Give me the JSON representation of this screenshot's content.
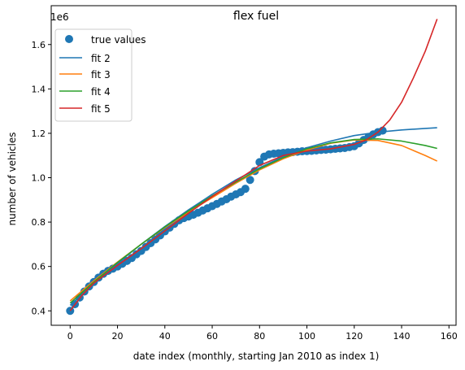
{
  "chart_data": {
    "type": "scatter",
    "title": "flex fuel",
    "xlabel": "date index (monthly, starting Jan 2010 as index 1)",
    "ylabel": "number of vehicles",
    "y_offset_text": "1e6",
    "xlim": [
      -8,
      163
    ],
    "ylim": [
      0.335,
      1.775
    ],
    "x_ticks": [
      0,
      20,
      40,
      60,
      80,
      100,
      120,
      140,
      160
    ],
    "y_ticks": [
      0.4,
      0.6,
      0.8,
      1.0,
      1.2,
      1.4,
      1.6
    ],
    "y_tick_labels": [
      "0.4",
      "0.6",
      "0.8",
      "1.0",
      "1.2",
      "1.4",
      "1.6"
    ],
    "grid": false,
    "legend_position": "upper-left",
    "legend": [
      "true values",
      "fit 2",
      "fit 3",
      "fit 4",
      "fit 5"
    ],
    "scatter": {
      "name": "true values",
      "color": "#1f77b4",
      "points": [
        [
          0,
          0.4
        ],
        [
          2,
          0.43
        ],
        [
          4,
          0.46
        ],
        [
          6,
          0.487
        ],
        [
          8,
          0.51
        ],
        [
          10,
          0.53
        ],
        [
          12,
          0.55
        ],
        [
          14,
          0.567
        ],
        [
          16,
          0.58
        ],
        [
          18,
          0.59
        ],
        [
          20,
          0.6
        ],
        [
          22,
          0.612
        ],
        [
          24,
          0.625
        ],
        [
          26,
          0.638
        ],
        [
          28,
          0.655
        ],
        [
          30,
          0.67
        ],
        [
          32,
          0.688
        ],
        [
          34,
          0.705
        ],
        [
          36,
          0.722
        ],
        [
          38,
          0.74
        ],
        [
          40,
          0.758
        ],
        [
          42,
          0.775
        ],
        [
          44,
          0.792
        ],
        [
          46,
          0.808
        ],
        [
          48,
          0.818
        ],
        [
          50,
          0.825
        ],
        [
          52,
          0.833
        ],
        [
          54,
          0.842
        ],
        [
          56,
          0.852
        ],
        [
          58,
          0.862
        ],
        [
          60,
          0.872
        ],
        [
          62,
          0.882
        ],
        [
          64,
          0.893
        ],
        [
          66,
          0.903
        ],
        [
          68,
          0.915
        ],
        [
          70,
          0.925
        ],
        [
          72,
          0.935
        ],
        [
          74,
          0.95
        ],
        [
          76,
          0.99
        ],
        [
          78,
          1.03
        ],
        [
          80,
          1.07
        ],
        [
          82,
          1.095
        ],
        [
          84,
          1.105
        ],
        [
          86,
          1.108
        ],
        [
          88,
          1.11
        ],
        [
          90,
          1.112
        ],
        [
          92,
          1.114
        ],
        [
          94,
          1.115
        ],
        [
          96,
          1.117
        ],
        [
          98,
          1.119
        ],
        [
          100,
          1.12
        ],
        [
          102,
          1.121
        ],
        [
          104,
          1.123
        ],
        [
          106,
          1.125
        ],
        [
          108,
          1.126
        ],
        [
          110,
          1.128
        ],
        [
          112,
          1.13
        ],
        [
          114,
          1.132
        ],
        [
          116,
          1.134
        ],
        [
          118,
          1.138
        ],
        [
          120,
          1.142
        ],
        [
          122,
          1.155
        ],
        [
          124,
          1.17
        ],
        [
          126,
          1.183
        ],
        [
          128,
          1.195
        ],
        [
          130,
          1.205
        ],
        [
          132,
          1.212
        ]
      ]
    },
    "series": [
      {
        "name": "fit 2",
        "color": "#1f77b4",
        "x": [
          0,
          10,
          20,
          30,
          40,
          50,
          60,
          70,
          80,
          90,
          100,
          110,
          120,
          130,
          140,
          150,
          155
        ],
        "values": [
          0.425,
          0.525,
          0.615,
          0.7,
          0.78,
          0.855,
          0.925,
          0.99,
          1.045,
          1.095,
          1.135,
          1.165,
          1.19,
          1.205,
          1.215,
          1.222,
          1.225
        ]
      },
      {
        "name": "fit 3",
        "color": "#ff7f0e",
        "x": [
          0,
          10,
          20,
          30,
          40,
          50,
          60,
          70,
          80,
          90,
          100,
          110,
          120,
          130,
          140,
          150,
          155
        ],
        "values": [
          0.445,
          0.535,
          0.62,
          0.7,
          0.775,
          0.845,
          0.91,
          0.975,
          1.035,
          1.085,
          1.125,
          1.155,
          1.17,
          1.168,
          1.145,
          1.1,
          1.075
        ]
      },
      {
        "name": "fit 4",
        "color": "#2ca02c",
        "x": [
          0,
          10,
          20,
          30,
          40,
          50,
          60,
          70,
          80,
          90,
          100,
          110,
          120,
          130,
          140,
          150,
          155
        ],
        "values": [
          0.435,
          0.53,
          0.618,
          0.7,
          0.778,
          0.85,
          0.918,
          0.98,
          1.04,
          1.09,
          1.13,
          1.157,
          1.172,
          1.175,
          1.165,
          1.145,
          1.132
        ]
      },
      {
        "name": "fit 5",
        "color": "#d62728",
        "x": [
          0,
          5,
          10,
          20,
          30,
          40,
          50,
          60,
          70,
          80,
          90,
          100,
          110,
          120,
          125,
          130,
          135,
          140,
          145,
          150,
          155
        ],
        "values": [
          0.4,
          0.47,
          0.525,
          0.605,
          0.68,
          0.76,
          0.84,
          0.915,
          0.985,
          1.055,
          1.1,
          1.12,
          1.13,
          1.15,
          1.17,
          1.205,
          1.26,
          1.34,
          1.45,
          1.57,
          1.715
        ]
      }
    ]
  }
}
